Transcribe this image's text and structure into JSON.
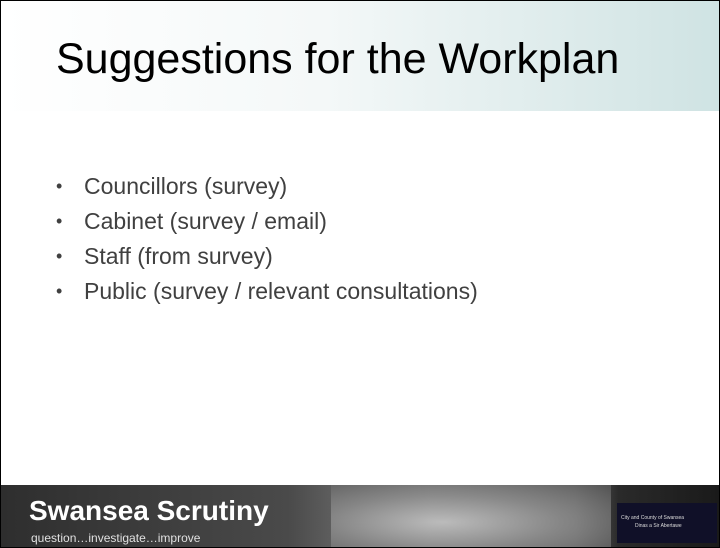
{
  "title": "Suggestions for the Workplan",
  "bullets": [
    "Councillors (survey)",
    "Cabinet (survey / email)",
    "Staff (from survey)",
    "Public (survey / relevant consultations)"
  ],
  "footer": {
    "brand": "Swansea Scrutiny",
    "tagline": "question…investigate…improve",
    "logo_text": "City and County of Swansea",
    "logo_subtext": "Dinas a Sir Abertawe"
  }
}
